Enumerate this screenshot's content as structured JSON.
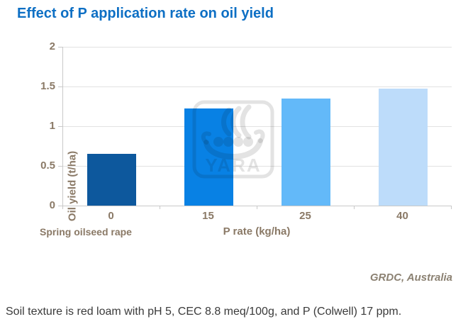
{
  "chart_data": {
    "type": "bar",
    "title": "Effect of P application rate on oil yield",
    "categories": [
      "0",
      "15",
      "25",
      "40"
    ],
    "values": [
      0.65,
      1.22,
      1.35,
      1.47
    ],
    "bar_colors": [
      "#0d589d",
      "#0881e4",
      "#63b9f9",
      "#bddcfa"
    ],
    "xlabel": "P rate (kg/ha)",
    "ylabel": "Oil yield (t/ha)",
    "x_axis_note": "Spring oilseed rape",
    "ylim": [
      0,
      2
    ],
    "yticks": [
      2,
      1.5,
      1,
      0.5,
      0
    ],
    "grid": true,
    "legend_position": "none",
    "source": "GRDC, Australia",
    "watermark_text": "YARA"
  },
  "caption": "Soil texture is red loam with pH 5, CEC 8.8 meq/100g, and P (Colwell) 17 ppm.",
  "colors": {
    "title_text": "#0d6fc4",
    "axis_text": "#8a7966",
    "source_text": "#8b8172",
    "caption_text": "#3a3a3a",
    "gridline": "#e2e2e2",
    "axis_line": "#c9c9c9",
    "watermark": "#e2e2e2"
  }
}
